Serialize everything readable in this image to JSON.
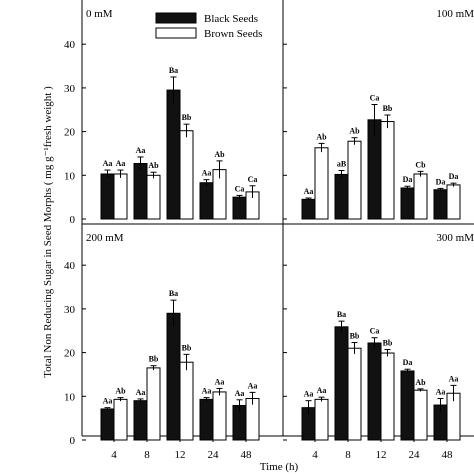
{
  "chart_data": [
    {
      "type": "bar",
      "panel_label": "0 mM",
      "categories": [
        "4",
        "8",
        "12",
        "24",
        "48"
      ],
      "series": [
        {
          "name": "Black Seeds",
          "values": [
            10.3,
            12.7,
            29.5,
            8.3,
            5.0
          ],
          "errors": [
            0.9,
            1.5,
            3.0,
            0.7,
            0.4
          ],
          "letters": [
            "Aa",
            "Aa",
            "Ba",
            "Aa",
            "Ca"
          ]
        },
        {
          "name": "Brown Seeds",
          "values": [
            10.3,
            10.0,
            20.2,
            11.3,
            6.2
          ],
          "errors": [
            0.9,
            0.7,
            1.5,
            2.0,
            1.4
          ],
          "letters": [
            "Aa",
            "Ab",
            "Bb",
            "Ab",
            "Ca"
          ]
        }
      ],
      "ylim": [
        0,
        48
      ],
      "yticks": [
        "0",
        "10",
        "20",
        "30",
        "40"
      ]
    },
    {
      "type": "bar",
      "panel_label": "100 mM",
      "categories": [
        "4",
        "8",
        "12",
        "24",
        "48"
      ],
      "series": [
        {
          "name": "Black Seeds",
          "values": [
            4.5,
            10.2,
            22.7,
            7.1,
            6.7
          ],
          "errors": [
            0.3,
            0.9,
            3.5,
            0.4,
            0.3
          ],
          "letters": [
            "Aa",
            "aB",
            "Ca",
            "Da",
            "Da"
          ]
        },
        {
          "name": "Brown Seeds",
          "values": [
            16.3,
            17.8,
            22.3,
            10.3,
            7.8
          ],
          "errors": [
            1.0,
            0.8,
            1.5,
            0.6,
            0.4
          ],
          "letters": [
            "Ab",
            "Ab",
            "Bb",
            "Cb",
            "Da"
          ]
        }
      ],
      "ylim": [
        0,
        48
      ],
      "yticks": [
        "0",
        "10",
        "20",
        "30",
        "40"
      ]
    },
    {
      "type": "bar",
      "panel_label": "200 mM",
      "categories": [
        "4",
        "8",
        "12",
        "24",
        "48"
      ],
      "series": [
        {
          "name": "Black Seeds",
          "values": [
            7.1,
            9.0,
            29.0,
            9.3,
            7.9
          ],
          "errors": [
            0.3,
            0.4,
            3.0,
            0.4,
            1.3
          ],
          "letters": [
            "Aa",
            "Aa",
            "Ba",
            "Aa",
            "Aa"
          ]
        },
        {
          "name": "Brown Seeds",
          "values": [
            9.3,
            16.5,
            17.8,
            11.0,
            9.5
          ],
          "errors": [
            0.4,
            0.5,
            1.8,
            0.8,
            1.4
          ],
          "letters": [
            "Ab",
            "Bb",
            "Bb",
            "Aa",
            "Aa"
          ]
        }
      ],
      "ylim": [
        0,
        48
      ],
      "yticks": [
        "0",
        "10",
        "20",
        "30",
        "40"
      ]
    },
    {
      "type": "bar",
      "panel_label": "300 mM",
      "categories": [
        "4",
        "8",
        "12",
        "24",
        "48"
      ],
      "series": [
        {
          "name": "Black Seeds",
          "values": [
            7.4,
            25.9,
            22.2,
            15.8,
            8.0
          ],
          "errors": [
            1.6,
            1.3,
            1.2,
            0.4,
            1.5
          ],
          "letters": [
            "Aa",
            "Ba",
            "Ca",
            "Da",
            "Aa"
          ]
        },
        {
          "name": "Brown Seeds",
          "values": [
            9.3,
            21.0,
            19.9,
            11.4,
            10.7
          ],
          "errors": [
            0.5,
            1.3,
            0.8,
            0.3,
            1.8
          ],
          "letters": [
            "Aa",
            "Bb",
            "Bb",
            "Ab",
            "Aa"
          ]
        }
      ],
      "ylim": [
        0,
        48
      ],
      "yticks": [
        "0",
        "10",
        "20",
        "30",
        "40"
      ]
    }
  ],
  "legend": [
    "Black Seeds",
    "Brown Seeds"
  ],
  "ylabel": "Total Non Reducing Sugar in Seed Morphs ( mg g⁻¹fresh weight )",
  "xlabel": "Time (h)",
  "colors": {
    "black_seeds": "#111111",
    "brown_seeds": "#ffffff",
    "axis": "#000000"
  }
}
